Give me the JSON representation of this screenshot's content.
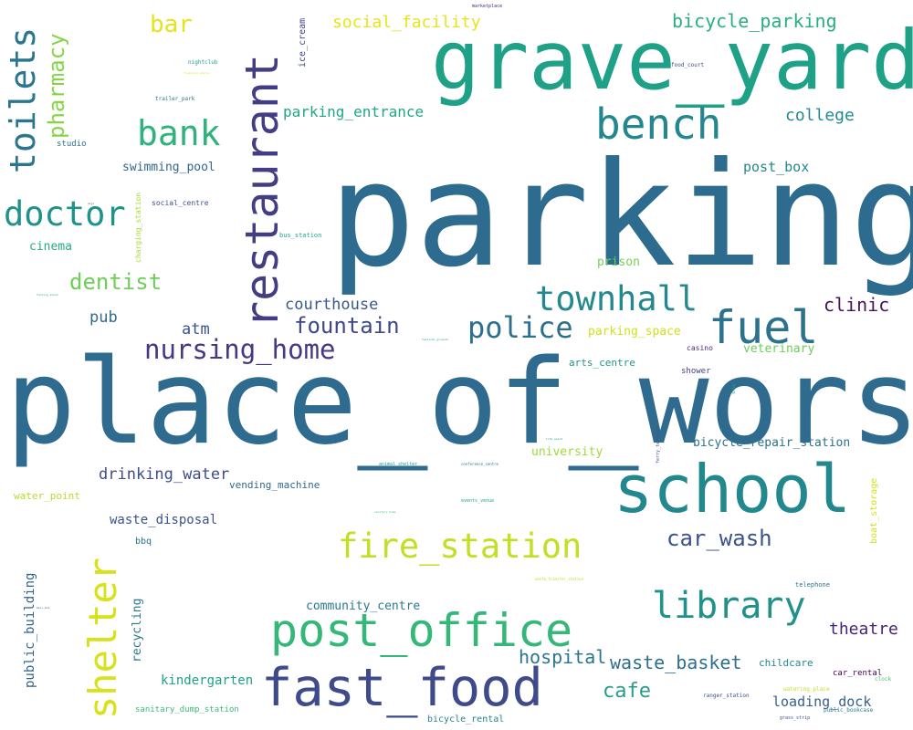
{
  "words": [
    {
      "text": "parking",
      "color": "#2d6c8e"
    },
    {
      "text": "place_of_worship",
      "color": "#2f6b8e"
    },
    {
      "text": "grave_yard",
      "color": "#1fa188"
    },
    {
      "text": "restaurant",
      "color": "#433d84"
    },
    {
      "text": "school",
      "color": "#23888e"
    },
    {
      "text": "shelter",
      "color": "#d8e219"
    },
    {
      "text": "fast_food",
      "color": "#3e4a89"
    },
    {
      "text": "post_office",
      "color": "#35b779"
    },
    {
      "text": "bench",
      "color": "#24868e"
    },
    {
      "text": "toilets",
      "color": "#2a768e"
    },
    {
      "text": "fuel",
      "color": "#2c728e"
    },
    {
      "text": "library",
      "color": "#21918c"
    },
    {
      "text": "doctor",
      "color": "#20928c"
    },
    {
      "text": "fire_station",
      "color": "#c2df23"
    },
    {
      "text": "townhall",
      "color": "#23898e"
    },
    {
      "text": "bank",
      "color": "#2eb37c"
    },
    {
      "text": "police",
      "color": "#2d708e"
    },
    {
      "text": "nursing_home",
      "color": "#443983"
    },
    {
      "text": "pharmacy",
      "color": "#86d549"
    },
    {
      "text": "car_wash",
      "color": "#3b528b"
    },
    {
      "text": "dentist",
      "color": "#6ece58"
    },
    {
      "text": "bar",
      "color": "#e5e419"
    },
    {
      "text": "waste_basket",
      "color": "#2e6f8e"
    },
    {
      "text": "hospital",
      "color": "#2b758e"
    },
    {
      "text": "cafe",
      "color": "#2a9d8a"
    },
    {
      "text": "fountain",
      "color": "#3f4788"
    },
    {
      "text": "clinic",
      "color": "#471164"
    },
    {
      "text": "theatre",
      "color": "#482475"
    },
    {
      "text": "loading_dock",
      "color": "#355f8d"
    },
    {
      "text": "bicycle_parking",
      "color": "#28ae80"
    },
    {
      "text": "drinking_water",
      "color": "#3e4c8a"
    },
    {
      "text": "social_facility",
      "color": "#e7e419"
    },
    {
      "text": "courthouse",
      "color": "#38598c"
    },
    {
      "text": "parking_entrance",
      "color": "#21a685"
    },
    {
      "text": "college",
      "color": "#23898e"
    },
    {
      "text": "atm",
      "color": "#3a548c"
    },
    {
      "text": "public_building",
      "color": "#33628d"
    },
    {
      "text": "kindergarten",
      "color": "#1fa088"
    },
    {
      "text": "pub",
      "color": "#2f6c8e"
    },
    {
      "text": "waste_disposal",
      "color": "#3b528b"
    },
    {
      "text": "community_centre",
      "color": "#2a788e"
    },
    {
      "text": "post_box",
      "color": "#24878e"
    },
    {
      "text": "cinema",
      "color": "#26ad81"
    },
    {
      "text": "swimming_pool",
      "color": "#31668e"
    },
    {
      "text": "recycling",
      "color": "#2a788e"
    },
    {
      "text": "parking_space",
      "color": "#d0e11c"
    },
    {
      "text": "veterinary",
      "color": "#6ccd5a"
    },
    {
      "text": "university",
      "color": "#a0da39"
    },
    {
      "text": "bicycle_repair_station",
      "color": "#2c718e"
    },
    {
      "text": "vending_machine",
      "color": "#31688e"
    },
    {
      "text": "ice_cream",
      "color": "#404688"
    },
    {
      "text": "prison",
      "color": "#75d054"
    },
    {
      "text": "arts_centre",
      "color": "#1f968b"
    },
    {
      "text": "childcare",
      "color": "#23898e"
    },
    {
      "text": "bicycle_rental",
      "color": "#25848e"
    },
    {
      "text": "water_point",
      "color": "#b5de2b"
    },
    {
      "text": "bbq",
      "color": "#2d718e"
    },
    {
      "text": "sanitary_dump_station",
      "color": "#3bbb75"
    },
    {
      "text": "boat_storage",
      "color": "#d2e21b"
    },
    {
      "text": "car_rental",
      "color": "#440154"
    },
    {
      "text": "shower",
      "color": "#424086"
    },
    {
      "text": "casino",
      "color": "#472a7a"
    },
    {
      "text": "studio",
      "color": "#2c728e"
    },
    {
      "text": "social_centre",
      "color": "#3b528b"
    },
    {
      "text": "charging_station",
      "color": "#a5db36"
    },
    {
      "text": "telephone",
      "color": "#2d708e"
    },
    {
      "text": "bus_station",
      "color": "#20a386"
    },
    {
      "text": "nightclub",
      "color": "#1f998a"
    },
    {
      "text": "trailer_park",
      "color": "#2a788e"
    },
    {
      "text": "food_court",
      "color": "#3e4989"
    },
    {
      "text": "ranger_station",
      "color": "#3c508b"
    },
    {
      "text": "public_bookcase",
      "color": "#2a788e"
    },
    {
      "text": "watering_place",
      "color": "#bddf26"
    },
    {
      "text": "clock",
      "color": "#4ac16d"
    },
    {
      "text": "grass_strip",
      "color": "#3b528b"
    },
    {
      "text": "shop",
      "color": "#1f9e89"
    },
    {
      "text": "ferry_terminal",
      "color": "#39568c"
    },
    {
      "text": "animal_shelter",
      "color": "#1f9a8a"
    },
    {
      "text": "conference_centre",
      "color": "#287c8e"
    },
    {
      "text": "events_venue",
      "color": "#22a785"
    },
    {
      "text": "waste_transfer_station",
      "color": "#b8de29"
    },
    {
      "text": "marketplace",
      "color": "#482878"
    },
    {
      "text": "financial_advice",
      "color": "#dde318"
    },
    {
      "text": "festival_grounds",
      "color": "#1fa187"
    },
    {
      "text": "hunting_stand",
      "color": "#27ad81"
    },
    {
      "text": "dojo",
      "color": "#32648e"
    },
    {
      "text": "mail_box",
      "color": "#2c728e"
    },
    {
      "text": "sanitary_home",
      "color": "#3dbc74"
    },
    {
      "text": "life_guard",
      "color": "#1fa088"
    }
  ]
}
